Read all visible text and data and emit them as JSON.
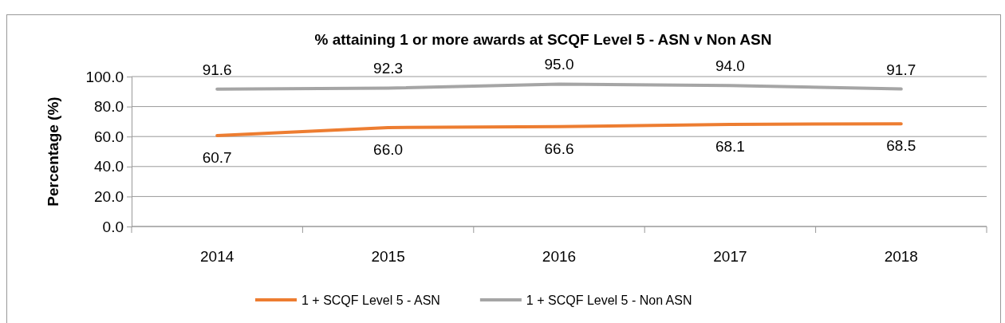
{
  "chart_data": {
    "type": "line",
    "title": "% attaining 1 or more awards at SCQF Level 5 - ASN v Non ASN",
    "ylabel": "Percentage (%)",
    "categories": [
      "2014",
      "2015",
      "2016",
      "2017",
      "2018"
    ],
    "series": [
      {
        "name": "1 + SCQF Level 5 - ASN",
        "color": "#ed7d31",
        "values": [
          60.7,
          66.0,
          66.6,
          68.1,
          68.5
        ],
        "value_labels": [
          "60.7",
          "66.0",
          "66.6",
          "68.1",
          "68.5"
        ]
      },
      {
        "name": "1 + SCQF Level 5 - Non ASN",
        "color": "#a5a5a5",
        "values": [
          91.6,
          92.3,
          95.0,
          94.0,
          91.7
        ],
        "value_labels": [
          "91.6",
          "92.3",
          "95.0",
          "94.0",
          "91.7"
        ]
      }
    ],
    "ylim": [
      0,
      100
    ],
    "yticks": [
      {
        "value": 0,
        "label": "0.0"
      },
      {
        "value": 20,
        "label": "20.0"
      },
      {
        "value": 40,
        "label": "40.0"
      },
      {
        "value": 60,
        "label": "60.0"
      },
      {
        "value": 80,
        "label": "80.0"
      },
      {
        "value": 100,
        "label": "100.0"
      }
    ],
    "grid": "y",
    "legend": "bottom",
    "marker": "none",
    "line_style": "solid"
  }
}
